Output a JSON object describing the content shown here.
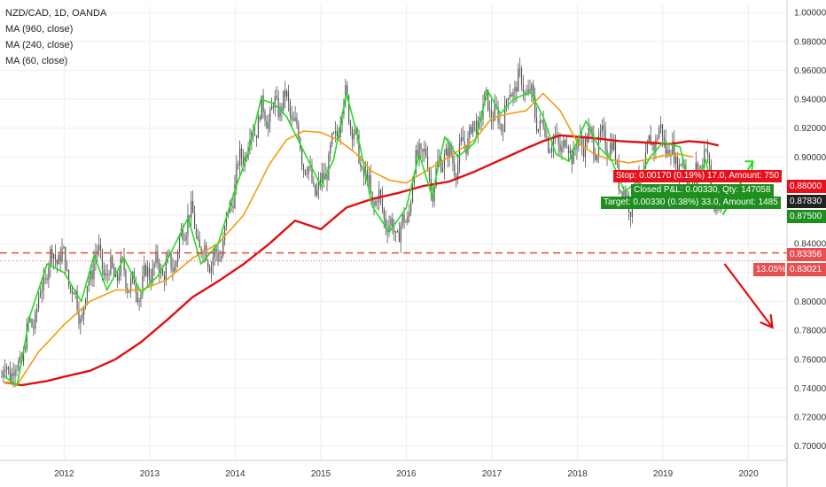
{
  "legend": {
    "symbol": "NZD/CAD, 1D, OANDA",
    "ma1": "MA (960, close)",
    "ma2": "MA (240, close)",
    "ma3": "MA (60, close)"
  },
  "price_tags": {
    "stop": "0.88000",
    "current": "0.87830",
    "target": "0.87500",
    "pct": "13.05%",
    "p1": "0.83356",
    "p2": "0.83021"
  },
  "trade_boxes": {
    "stop_text": "Stop: 0.00170 (0.19%) 17.0, Amount: 750",
    "pnl_text": "Closed P&L: 0.00330, Qty: 147058",
    "target_text": "Target: 0.00330 (0.38%) 33.0, Amount: 1485"
  },
  "colors": {
    "ma60": "#22dd22",
    "ma240": "#f39c12",
    "ma960": "#e01010",
    "candles": "#555555",
    "dashed_level": "#e74c3c",
    "stop_bg": "#e8101c",
    "target_bg": "#1e8f1e",
    "current_bg": "#222222",
    "pct_bg": "#e85050",
    "arrow": "#e01010",
    "up_arrow": "#22dd22"
  },
  "chart_data": {
    "type": "line",
    "title": "NZD/CAD, 1D, OANDA",
    "x_ticks": [
      "2012",
      "2013",
      "2014",
      "2015",
      "2016",
      "2017",
      "2018",
      "2019",
      "2020"
    ],
    "y_ticks": [
      "1.00000",
      "0.98000",
      "0.96000",
      "0.94000",
      "0.92000",
      "0.90000",
      "0.88000",
      "0.86000",
      "0.84000",
      "0.82000",
      "0.80000",
      "0.78000",
      "0.76000",
      "0.74000",
      "0.72000",
      "0.70000"
    ],
    "ylim": [
      0.69,
      1.005
    ],
    "xlim": [
      2011.25,
      2020.45
    ],
    "horizontal_level": 0.8336,
    "series": [
      {
        "name": "MA (60, close)",
        "x": [
          2011.3,
          2011.45,
          2011.6,
          2011.8,
          2012.0,
          2012.2,
          2012.35,
          2012.5,
          2012.7,
          2012.9,
          2013.1,
          2013.25,
          2013.45,
          2013.6,
          2013.8,
          2014.0,
          2014.15,
          2014.3,
          2014.45,
          2014.6,
          2014.8,
          2015.0,
          2015.15,
          2015.3,
          2015.45,
          2015.6,
          2015.8,
          2016.0,
          2016.15,
          2016.3,
          2016.45,
          2016.6,
          2016.8,
          2016.95,
          2017.1,
          2017.25,
          2017.45,
          2017.6,
          2017.75,
          2017.9,
          2018.1,
          2018.25,
          2018.4,
          2018.55,
          2018.7,
          2018.85,
          2019.0,
          2019.2,
          2019.35,
          2019.5,
          2019.6
        ],
        "values": [
          0.748,
          0.742,
          0.79,
          0.826,
          0.82,
          0.8,
          0.832,
          0.808,
          0.83,
          0.806,
          0.818,
          0.834,
          0.858,
          0.826,
          0.84,
          0.878,
          0.902,
          0.94,
          0.937,
          0.928,
          0.904,
          0.88,
          0.898,
          0.944,
          0.91,
          0.866,
          0.848,
          0.865,
          0.902,
          0.873,
          0.914,
          0.9,
          0.91,
          0.946,
          0.93,
          0.94,
          0.945,
          0.928,
          0.902,
          0.897,
          0.925,
          0.907,
          0.898,
          0.876,
          0.883,
          0.9,
          0.91,
          0.907,
          0.872,
          0.898,
          0.87
        ]
      },
      {
        "name": "MA (240, close)",
        "x": [
          2011.3,
          2011.45,
          2011.7,
          2012.0,
          2012.3,
          2012.6,
          2012.9,
          2013.2,
          2013.5,
          2013.8,
          2014.1,
          2014.4,
          2014.6,
          2014.8,
          2015.0,
          2015.2,
          2015.4,
          2015.6,
          2015.8,
          2016.0,
          2016.3,
          2016.5,
          2016.8,
          2017.0,
          2017.2,
          2017.4,
          2017.6,
          2017.8,
          2018.0,
          2018.2,
          2018.4,
          2018.6,
          2018.8,
          2019.0,
          2019.2,
          2019.35
        ],
        "values": [
          0.744,
          0.742,
          0.765,
          0.784,
          0.8,
          0.808,
          0.808,
          0.815,
          0.83,
          0.84,
          0.86,
          0.895,
          0.912,
          0.918,
          0.917,
          0.912,
          0.903,
          0.89,
          0.884,
          0.882,
          0.893,
          0.9,
          0.912,
          0.927,
          0.93,
          0.932,
          0.944,
          0.932,
          0.91,
          0.902,
          0.898,
          0.896,
          0.898,
          0.901,
          0.902,
          0.9
        ]
      },
      {
        "name": "MA (960, close)",
        "x": [
          2011.3,
          2011.5,
          2011.8,
          2012.0,
          2012.3,
          2012.6,
          2012.9,
          2013.2,
          2013.5,
          2013.8,
          2014.1,
          2014.4,
          2014.7,
          2015.0,
          2015.3,
          2015.6,
          2015.9,
          2016.2,
          2016.5,
          2016.8,
          2017.1,
          2017.4,
          2017.6,
          2017.8,
          2018.0,
          2018.2,
          2018.5,
          2018.8,
          2019.1,
          2019.3,
          2019.5,
          2019.65
        ],
        "values": [
          0.744,
          0.742,
          0.745,
          0.748,
          0.752,
          0.76,
          0.772,
          0.787,
          0.803,
          0.814,
          0.826,
          0.84,
          0.856,
          0.85,
          0.865,
          0.871,
          0.875,
          0.88,
          0.883,
          0.89,
          0.898,
          0.906,
          0.911,
          0.915,
          0.914,
          0.913,
          0.911,
          0.91,
          0.909,
          0.911,
          0.91,
          0.908
        ]
      }
    ]
  }
}
